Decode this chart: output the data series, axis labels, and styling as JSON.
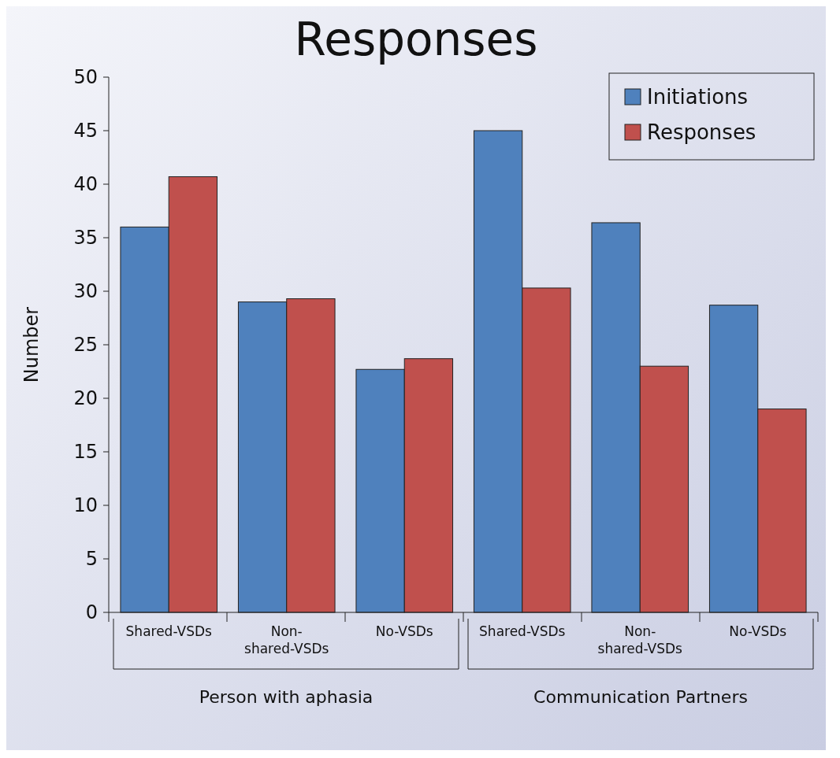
{
  "chart_data": {
    "type": "bar",
    "title": "Responses",
    "ylabel": "Number",
    "categories": [
      "Shared-VSDs",
      "Non-shared-VSDs",
      "No-VSDs",
      "Shared-VSDs",
      "Non-shared-VSDs",
      "No-VSDs"
    ],
    "series": [
      {
        "name": "Initiations",
        "color": "#4f81bd",
        "values": [
          36,
          29,
          22.7,
          45,
          36.4,
          28.7
        ]
      },
      {
        "name": "Responses",
        "color": "#c0504d",
        "values": [
          40.7,
          29.3,
          23.7,
          30.3,
          23,
          19
        ]
      }
    ],
    "ylim": [
      0,
      50
    ],
    "yticks": [
      0,
      5,
      10,
      15,
      20,
      25,
      30,
      35,
      40,
      45,
      50
    ],
    "grid": false,
    "legend": "top right",
    "annotations": [
      "Person with aphasia",
      "Communication Partners"
    ]
  }
}
